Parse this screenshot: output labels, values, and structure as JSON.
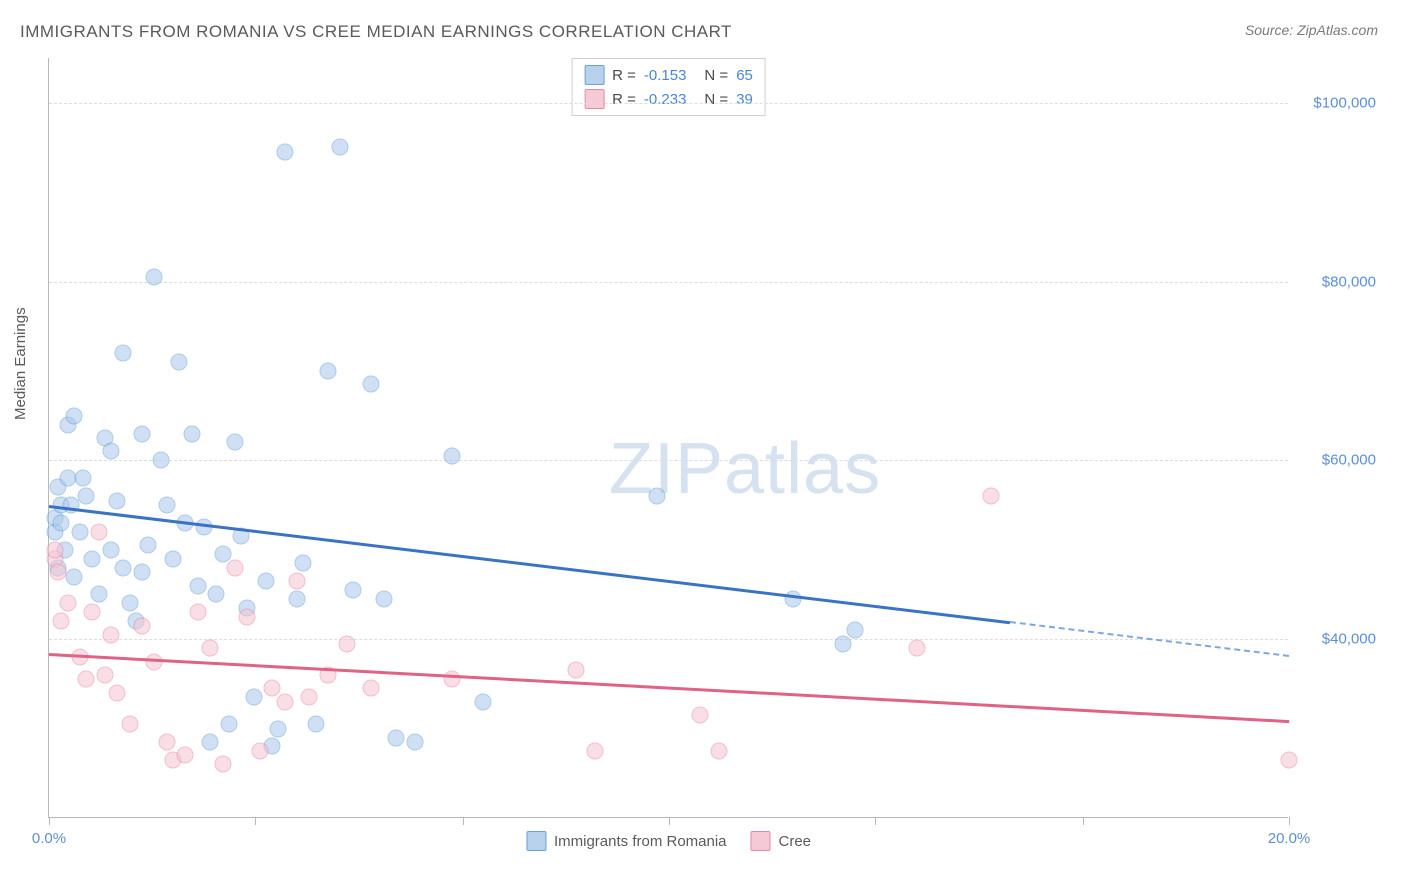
{
  "title": "IMMIGRANTS FROM ROMANIA VS CREE MEDIAN EARNINGS CORRELATION CHART",
  "source": "Source: ZipAtlas.com",
  "ylabel": "Median Earnings",
  "watermark_a": "ZIP",
  "watermark_b": "atlas",
  "chart": {
    "type": "scatter",
    "xlim": [
      0,
      20
    ],
    "ylim": [
      20000,
      105000
    ],
    "yticks": [
      40000,
      60000,
      80000,
      100000
    ],
    "ytick_labels": [
      "$40,000",
      "$60,000",
      "$80,000",
      "$100,000"
    ],
    "xticks": [
      0,
      10,
      20
    ],
    "xtick_labels": [
      "0.0%",
      "",
      "20.0%"
    ],
    "xtick_minor": [
      3.33,
      6.67,
      13.33,
      16.67
    ],
    "grid_color": "#dcdcdc",
    "background": "#ffffff",
    "marker_size": 17,
    "series": [
      {
        "name": "Immigrants from Romania",
        "color_fill": "#a8c8ec",
        "color_stroke": "#6a9fd8",
        "trend_color": "#3a73c4",
        "R": "-0.153",
        "N": "65",
        "trend": {
          "x0": 0,
          "y0": 55000,
          "x1": 15.5,
          "y1": 42000
        },
        "trend_dash": {
          "x0": 15.5,
          "y0": 42000,
          "x1": 20,
          "y1": 38200
        },
        "points": [
          [
            0.1,
            52000
          ],
          [
            0.1,
            53500
          ],
          [
            0.15,
            48000
          ],
          [
            0.15,
            57000
          ],
          [
            0.2,
            53000
          ],
          [
            0.2,
            55000
          ],
          [
            0.25,
            50000
          ],
          [
            0.3,
            64000
          ],
          [
            0.3,
            58000
          ],
          [
            0.35,
            55000
          ],
          [
            0.4,
            65000
          ],
          [
            0.4,
            47000
          ],
          [
            0.5,
            52000
          ],
          [
            0.55,
            58000
          ],
          [
            0.6,
            56000
          ],
          [
            0.7,
            49000
          ],
          [
            0.8,
            45000
          ],
          [
            0.9,
            62500
          ],
          [
            1.0,
            61000
          ],
          [
            1.0,
            50000
          ],
          [
            1.1,
            55500
          ],
          [
            1.2,
            72000
          ],
          [
            1.2,
            48000
          ],
          [
            1.3,
            44000
          ],
          [
            1.4,
            42000
          ],
          [
            1.5,
            63000
          ],
          [
            1.5,
            47500
          ],
          [
            1.6,
            50500
          ],
          [
            1.7,
            80500
          ],
          [
            1.8,
            60000
          ],
          [
            1.9,
            55000
          ],
          [
            2.0,
            49000
          ],
          [
            2.1,
            71000
          ],
          [
            2.2,
            53000
          ],
          [
            2.3,
            63000
          ],
          [
            2.4,
            46000
          ],
          [
            2.5,
            52500
          ],
          [
            2.6,
            28500
          ],
          [
            2.7,
            45000
          ],
          [
            2.8,
            49500
          ],
          [
            2.9,
            30500
          ],
          [
            3.0,
            62000
          ],
          [
            3.1,
            51500
          ],
          [
            3.2,
            43500
          ],
          [
            3.3,
            33500
          ],
          [
            3.5,
            46500
          ],
          [
            3.6,
            28000
          ],
          [
            3.7,
            30000
          ],
          [
            3.8,
            94500
          ],
          [
            4.0,
            44500
          ],
          [
            4.1,
            48500
          ],
          [
            4.3,
            30500
          ],
          [
            4.5,
            70000
          ],
          [
            4.7,
            95000
          ],
          [
            4.9,
            45500
          ],
          [
            5.2,
            68500
          ],
          [
            5.4,
            44500
          ],
          [
            5.6,
            29000
          ],
          [
            5.9,
            28500
          ],
          [
            6.5,
            60500
          ],
          [
            7.0,
            33000
          ],
          [
            9.8,
            56000
          ],
          [
            12.0,
            44500
          ],
          [
            12.8,
            39500
          ],
          [
            13.0,
            41000
          ]
        ]
      },
      {
        "name": "Cree",
        "color_fill": "#f5c4d2",
        "color_stroke": "#e68aa6",
        "trend_color": "#e06285",
        "R": "-0.233",
        "N": "39",
        "trend": {
          "x0": 0,
          "y0": 38500,
          "x1": 20,
          "y1": 31000
        },
        "points": [
          [
            0.1,
            49000
          ],
          [
            0.1,
            50000
          ],
          [
            0.15,
            47500
          ],
          [
            0.2,
            42000
          ],
          [
            0.3,
            44000
          ],
          [
            0.5,
            38000
          ],
          [
            0.6,
            35500
          ],
          [
            0.7,
            43000
          ],
          [
            0.8,
            52000
          ],
          [
            0.9,
            36000
          ],
          [
            1.0,
            40500
          ],
          [
            1.1,
            34000
          ],
          [
            1.3,
            30500
          ],
          [
            1.5,
            41500
          ],
          [
            1.7,
            37500
          ],
          [
            1.9,
            28500
          ],
          [
            2.0,
            26500
          ],
          [
            2.2,
            27000
          ],
          [
            2.4,
            43000
          ],
          [
            2.6,
            39000
          ],
          [
            2.8,
            26000
          ],
          [
            3.0,
            48000
          ],
          [
            3.2,
            42500
          ],
          [
            3.4,
            27500
          ],
          [
            3.6,
            34500
          ],
          [
            3.8,
            33000
          ],
          [
            4.0,
            46500
          ],
          [
            4.2,
            33500
          ],
          [
            4.5,
            36000
          ],
          [
            4.8,
            39500
          ],
          [
            5.2,
            34500
          ],
          [
            6.5,
            35500
          ],
          [
            8.5,
            36500
          ],
          [
            8.8,
            27500
          ],
          [
            10.5,
            31500
          ],
          [
            10.8,
            27500
          ],
          [
            14.0,
            39000
          ],
          [
            15.2,
            56000
          ],
          [
            20.0,
            26500
          ]
        ]
      }
    ]
  },
  "legend_bottom": [
    {
      "label": "Immigrants from Romania",
      "swatch": "blue"
    },
    {
      "label": "Cree",
      "swatch": "pink"
    }
  ]
}
